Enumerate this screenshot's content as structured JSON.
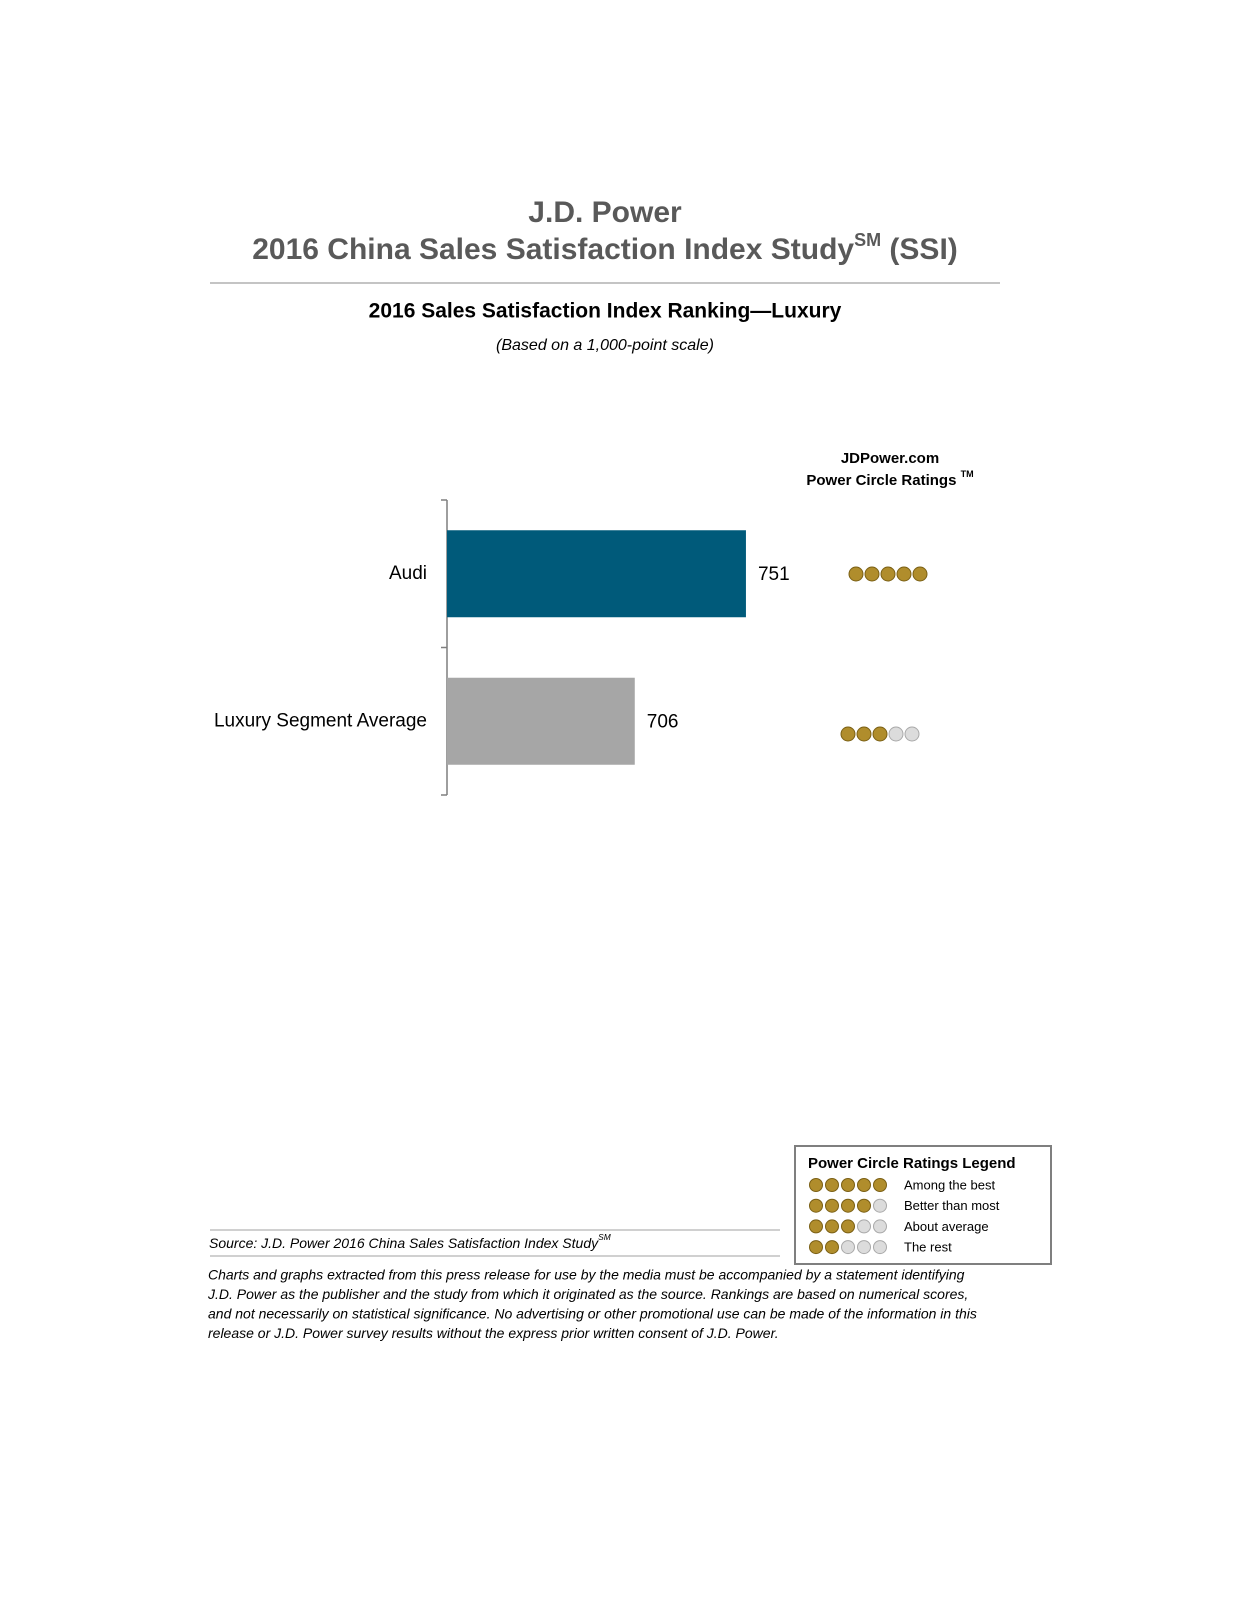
{
  "chart_data": {
    "type": "bar",
    "orientation": "horizontal",
    "header": {
      "line1": "J.D. Power",
      "line2": "2016 China Sales Satisfaction Index Study",
      "line2_sup": "SM",
      "line2_end": " (SSI)"
    },
    "title": "2016 Sales Satisfaction Index Ranking—Luxury",
    "subtitle": "(Based on a 1,000-point scale)",
    "categories": [
      "Audi",
      "Luxury Segment Average"
    ],
    "values": [
      751,
      706
    ],
    "colors": [
      "#005a7a",
      "#a6a6a6"
    ],
    "xlim": [
      630,
      800
    ],
    "ratings_header": {
      "line1": "JDPower.com",
      "line2": "Power Circle Ratings ",
      "line2_sup": "TM"
    },
    "ratings": [
      5,
      3
    ],
    "rating_color": "#b08d2c",
    "empty_color": "#dcdcdc",
    "legend": {
      "title": "Power Circle Ratings Legend",
      "entries": [
        {
          "rating": 5,
          "label": "Among the best"
        },
        {
          "rating": 4,
          "label": "Better than most"
        },
        {
          "rating": 3,
          "label": "About average"
        },
        {
          "rating": 2,
          "label": "The rest"
        }
      ]
    },
    "source": {
      "text": "Source: J.D. Power 2016 China Sales Satisfaction Index Study",
      "sup": "SM"
    },
    "disclaimer": [
      "Charts and graphs extracted from this press release for use by the media must be accompanied by a statement identifying",
      "J.D. Power as the publisher and the study from which it originated as the source. Rankings are based on numerical scores,",
      "and not necessarily on statistical significance. No advertising or other promotional use can be made of the information in this",
      "release or J.D. Power survey results without the express prior written consent of J.D. Power."
    ]
  }
}
